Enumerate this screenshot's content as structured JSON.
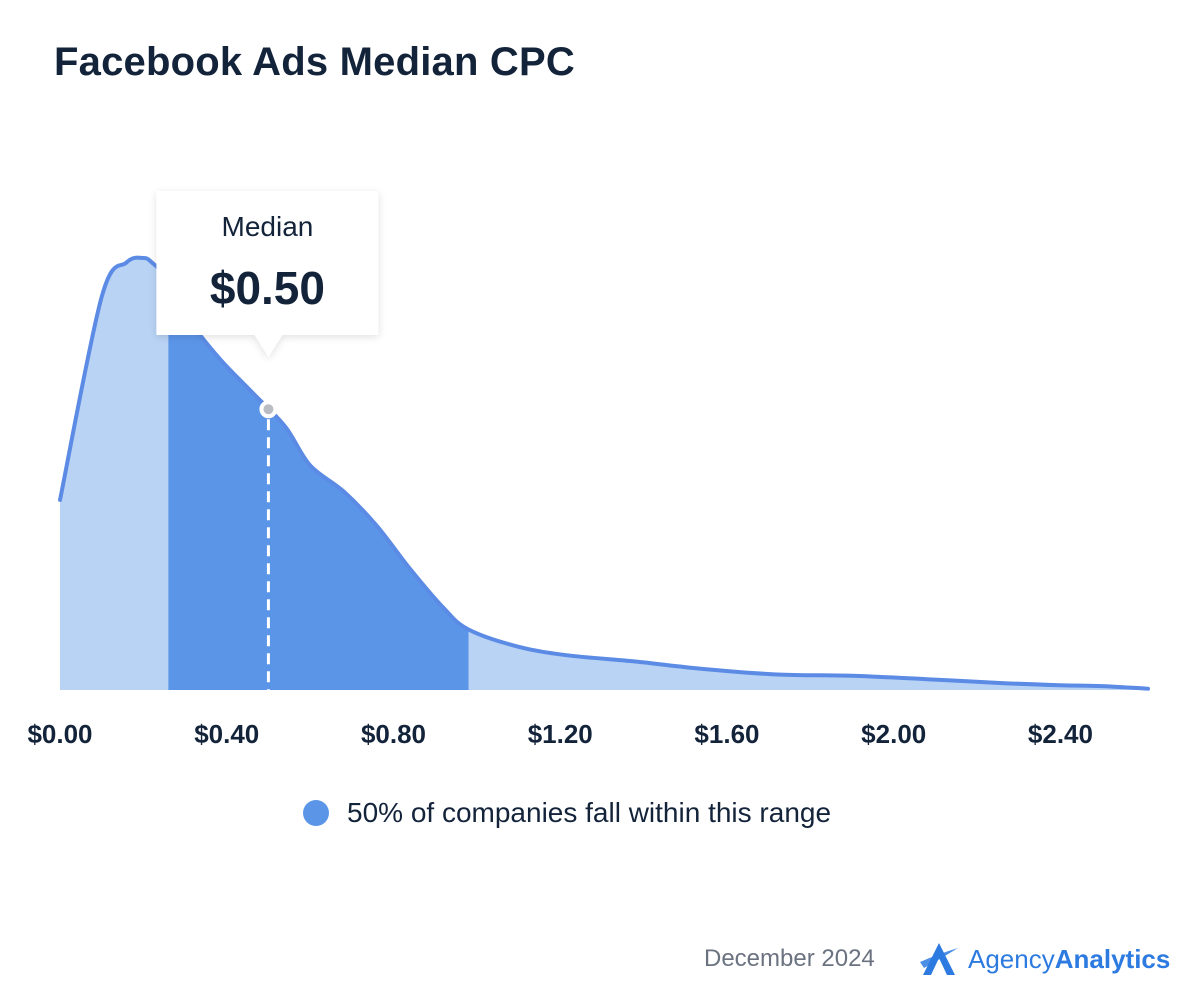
{
  "title": "Facebook Ads Median CPC",
  "chart_data": {
    "type": "area",
    "title": "Facebook Ads Median CPC",
    "xlabel": "",
    "ylabel": "",
    "xlim": [
      0.0,
      2.61
    ],
    "ylim": [
      0,
      1
    ],
    "tick_values": [
      0.0,
      0.4,
      0.8,
      1.2,
      1.6,
      2.0,
      2.4
    ],
    "tick_labels": [
      "$0.00",
      "$0.40",
      "$0.80",
      "$1.20",
      "$1.60",
      "$2.00",
      "$2.40"
    ],
    "grid": false,
    "curve": {
      "x": [
        0.0,
        0.1,
        0.16,
        0.2,
        0.22,
        0.26,
        0.3,
        0.38,
        0.46,
        0.54,
        0.6,
        0.68,
        0.76,
        0.84,
        0.92,
        0.98,
        1.1,
        1.22,
        1.38,
        1.54,
        1.72,
        1.9,
        2.08,
        2.26,
        2.4,
        2.5,
        2.61
      ],
      "y": [
        0.44,
        0.91,
        0.99,
        1.0,
        0.99,
        0.95,
        0.87,
        0.77,
        0.69,
        0.61,
        0.52,
        0.46,
        0.38,
        0.28,
        0.19,
        0.14,
        0.1,
        0.08,
        0.066,
        0.049,
        0.036,
        0.033,
        0.025,
        0.016,
        0.011,
        0.009,
        0.003
      ]
    },
    "highlight_range": {
      "start": 0.26,
      "end": 0.98,
      "label": "50% of companies fall within this range"
    },
    "median": {
      "value": 0.5,
      "label": "Median",
      "display": "$0.50"
    },
    "colors": {
      "curve": "#5b8be4",
      "fill_light": "#b9d3f5",
      "fill_highlight": "#5b95e8",
      "median_line": "#ffffff"
    }
  },
  "legend": {
    "label": "50% of companies fall within this range"
  },
  "footer": {
    "date": "December 2024",
    "brand_light": "Agency",
    "brand_bold": "Analytics"
  }
}
